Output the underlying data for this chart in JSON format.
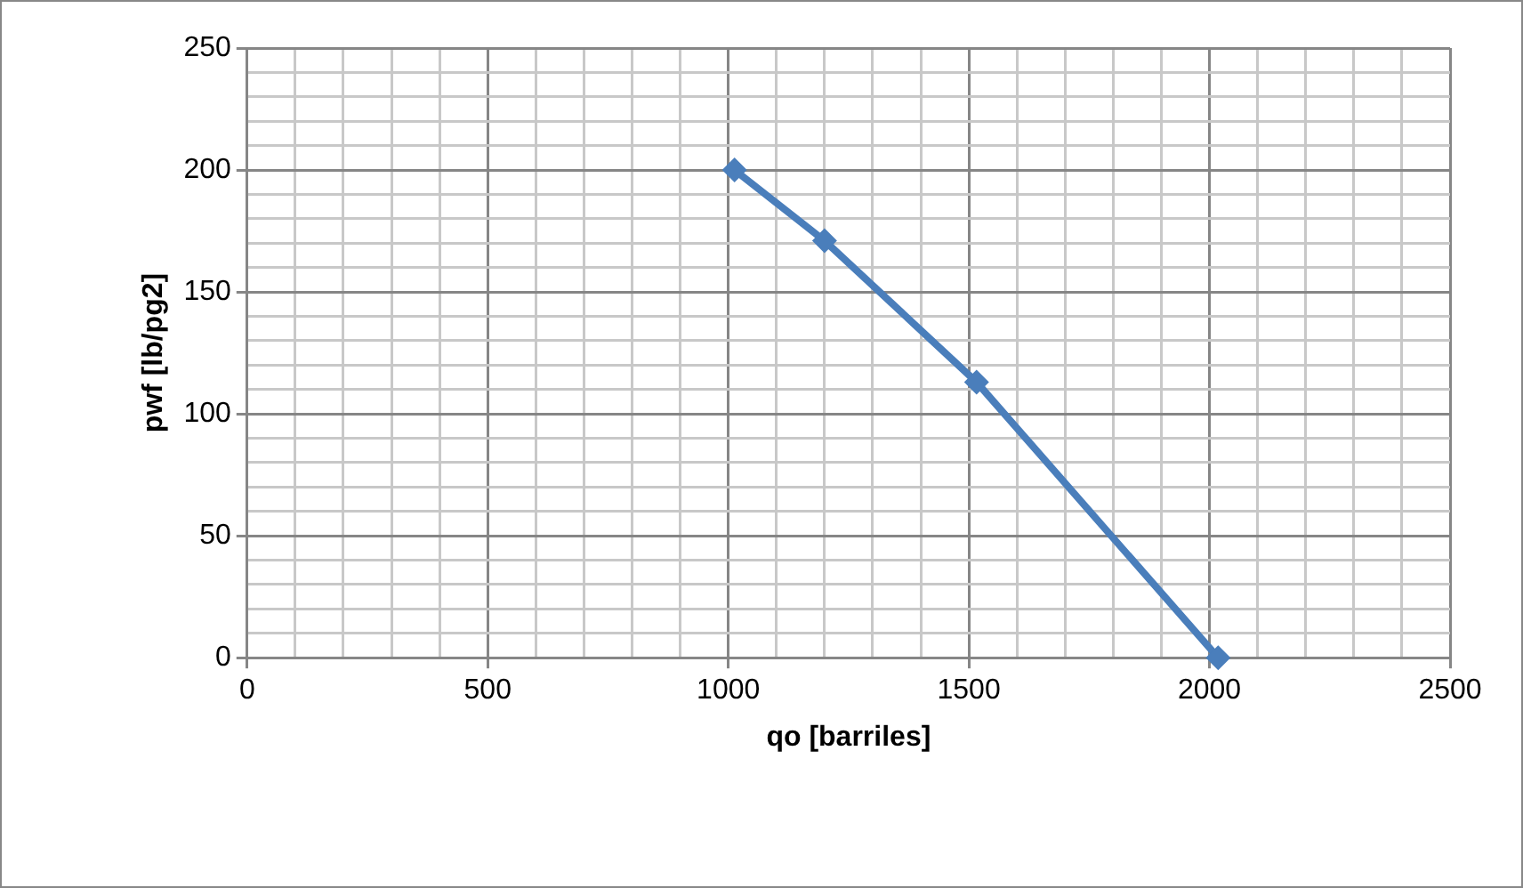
{
  "chart_data": {
    "type": "line",
    "xlabel": "qo [barriles]",
    "ylabel": "pwf [lb/pg2]",
    "x": [
      1013,
      1200,
      1516,
      2018
    ],
    "series": [
      {
        "color": "#4a7ebb",
        "values": [
          200,
          171,
          113,
          0
        ]
      }
    ],
    "xlim": [
      0,
      2500
    ],
    "xticks": [
      0,
      {
        "value": 100,
        "label": null
      },
      {
        "value": 200,
        "label": null
      },
      {
        "value": 300,
        "label": null
      },
      {
        "value": 400,
        "label": null
      },
      500,
      {
        "value": 600,
        "label": null
      },
      {
        "value": 700,
        "label": null
      },
      {
        "value": 800,
        "label": null
      },
      {
        "value": 900,
        "label": null
      },
      1000,
      {
        "value": 1100,
        "label": null
      },
      {
        "value": 1200,
        "label": null
      },
      {
        "value": 1300,
        "label": null
      },
      {
        "value": 1400,
        "label": null
      },
      1500,
      {
        "value": 1600,
        "label": null
      },
      {
        "value": 1700,
        "label": null
      },
      {
        "value": 1800,
        "label": null
      },
      {
        "value": 1900,
        "label": null
      },
      2000,
      {
        "value": 2100,
        "label": null
      },
      {
        "value": 2200,
        "label": null
      },
      {
        "value": 2300,
        "label": null
      },
      {
        "value": 2400,
        "label": null
      },
      2500
    ],
    "ylim": [
      0,
      250
    ],
    "yticks": [
      0,
      {
        "value": 10,
        "label": null
      },
      {
        "value": 20,
        "label": null
      },
      {
        "value": 30,
        "label": null
      },
      {
        "value": 40,
        "label": null
      },
      50,
      {
        "value": 60,
        "label": null
      },
      {
        "value": 70,
        "label": null
      },
      {
        "value": 80,
        "label": null
      },
      {
        "value": 90,
        "label": null
      },
      100,
      {
        "value": 110,
        "label": null
      },
      {
        "value": 120,
        "label": null
      },
      {
        "value": 130,
        "label": null
      },
      {
        "value": 140,
        "label": null
      },
      150,
      {
        "value": 160,
        "label": null
      },
      {
        "value": 170,
        "label": null
      },
      {
        "value": 180,
        "label": null
      },
      {
        "value": 190,
        "label": null
      },
      200,
      {
        "value": 210,
        "label": null
      },
      {
        "value": 220,
        "label": null
      },
      {
        "value": 230,
        "label": null
      },
      {
        "value": 240,
        "label": null
      },
      250
    ],
    "grid": true,
    "legend": false,
    "marker": "diamond",
    "line_style": "solid"
  }
}
